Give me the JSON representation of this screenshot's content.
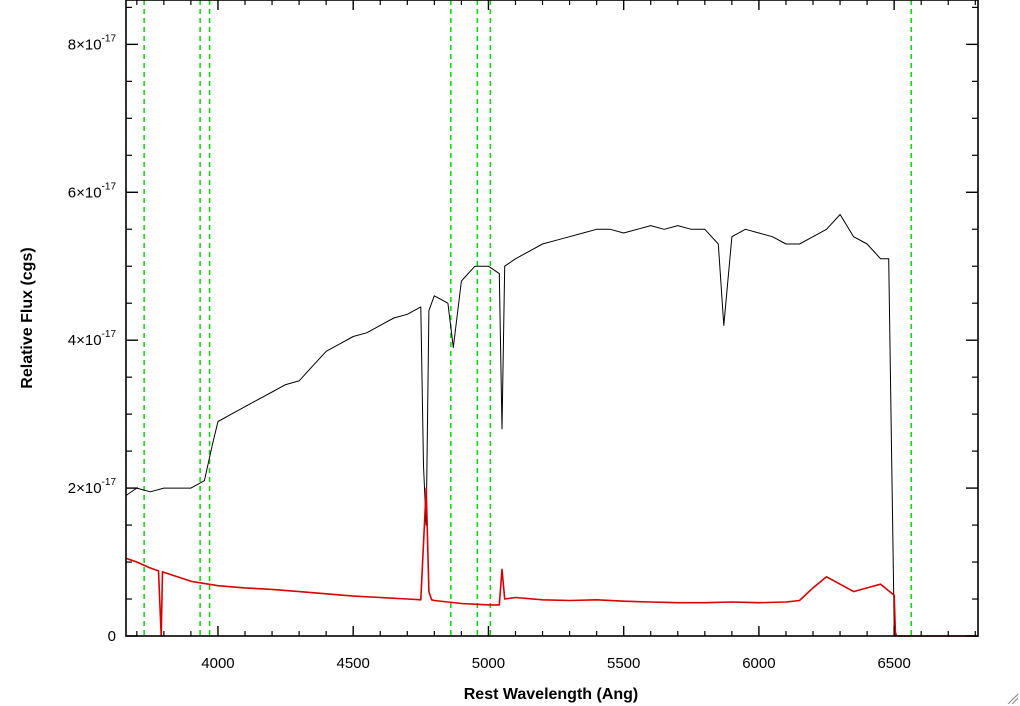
{
  "chart_data": {
    "type": "line",
    "title": "",
    "xlabel": "Rest Wavelength (Ang)",
    "ylabel": "Relative Flux (cgs)",
    "xlim": [
      3660,
      6810
    ],
    "ylim": [
      0,
      8.6e-17
    ],
    "x_ticks": [
      4000,
      4500,
      5000,
      5500,
      6000,
      6500
    ],
    "x_tick_labels": [
      "4000",
      "4500",
      "5000",
      "5500",
      "6000",
      "6500"
    ],
    "y_ticks": [
      0,
      2e-17,
      4e-17,
      6e-17,
      8e-17
    ],
    "y_tick_labels": [
      {
        "base": "0",
        "exp": ""
      },
      {
        "base": "2×10",
        "exp": "-17"
      },
      {
        "base": "4×10",
        "exp": "-17"
      },
      {
        "base": "6×10",
        "exp": "-17"
      },
      {
        "base": "8×10",
        "exp": "-17"
      }
    ],
    "grid": false,
    "legend": "none",
    "colors": {
      "observed": "#000000",
      "model": "#dd0000",
      "lines": "#00dd00"
    },
    "series": [
      {
        "x": [
          3660,
          3700,
          3750,
          3800,
          3850,
          3900,
          3950,
          3980,
          4000,
          4050,
          4100,
          4150,
          4200,
          4250,
          4300,
          4350,
          4400,
          4450,
          4500,
          4550,
          4600,
          4650,
          4700,
          4750,
          4760,
          4770,
          4780,
          4800,
          4850,
          4870,
          4900,
          4950,
          5000,
          5040,
          5050,
          5060,
          5100,
          5150,
          5200,
          5250,
          5300,
          5350,
          5400,
          5450,
          5500,
          5550,
          5600,
          5650,
          5700,
          5750,
          5800,
          5850,
          5870,
          5880,
          5900,
          5950,
          6000,
          6050,
          6100,
          6150,
          6200,
          6250,
          6300,
          6350,
          6400,
          6450,
          6480,
          6500,
          6510
        ],
        "values": [
          1.9e-17,
          2e-17,
          1.95e-17,
          2e-17,
          2e-17,
          2e-17,
          2.1e-17,
          2.6e-17,
          2.9e-17,
          3e-17,
          3.1e-17,
          3.2e-17,
          3.3e-17,
          3.4e-17,
          3.45e-17,
          3.65e-17,
          3.85e-17,
          3.95e-17,
          4.05e-17,
          4.1e-17,
          4.2e-17,
          4.3e-17,
          4.35e-17,
          4.45e-17,
          2.3e-17,
          1.5e-17,
          4.4e-17,
          4.6e-17,
          4.5e-17,
          3.9e-17,
          4.8e-17,
          5e-17,
          5e-17,
          4.9e-17,
          2.8e-17,
          5e-17,
          5.1e-17,
          5.2e-17,
          5.3e-17,
          5.35e-17,
          5.4e-17,
          5.45e-17,
          5.5e-17,
          5.5e-17,
          5.45e-17,
          5.5e-17,
          5.55e-17,
          5.5e-17,
          5.55e-17,
          5.5e-17,
          5.5e-17,
          5.3e-17,
          4.2e-17,
          4.6e-17,
          5.4e-17,
          5.5e-17,
          5.45e-17,
          5.4e-17,
          5.3e-17,
          5.3e-17,
          5.4e-17,
          5.5e-17,
          5.7e-17,
          5.4e-17,
          5.3e-17,
          5.1e-17,
          5.1e-17,
          1e-18,
          0
        ]
      },
      {
        "x": [
          3660,
          3700,
          3750,
          3780,
          3790,
          3795,
          3800,
          3850,
          3900,
          4000,
          4100,
          4200,
          4300,
          4400,
          4500,
          4600,
          4700,
          4750,
          4770,
          4780,
          4790,
          4800,
          4850,
          4900,
          4950,
          5000,
          5040,
          5050,
          5060,
          5100,
          5200,
          5300,
          5400,
          5500,
          5600,
          5700,
          5800,
          5900,
          6000,
          6100,
          6150,
          6200,
          6250,
          6300,
          6350,
          6400,
          6450,
          6500,
          6505,
          6510,
          6800,
          6810
        ],
        "values": [
          1.05e-17,
          1e-17,
          9.2e-18,
          8.8e-18,
          0,
          8.7e-18,
          8.6e-18,
          8e-18,
          7.4e-18,
          6.8e-18,
          6.5e-18,
          6.3e-18,
          6e-18,
          5.7e-18,
          5.4e-18,
          5.2e-18,
          5e-18,
          4.9e-18,
          2e-17,
          6e-18,
          4.9e-18,
          4.8e-18,
          4.6e-18,
          4.4e-18,
          4.3e-18,
          4.2e-18,
          4.2e-18,
          9e-18,
          5e-18,
          5.2e-18,
          4.9e-18,
          4.8e-18,
          4.9e-18,
          4.7e-18,
          4.6e-18,
          4.5e-18,
          4.5e-18,
          4.6e-18,
          4.5e-18,
          4.6e-18,
          4.8e-18,
          6.5e-18,
          8e-18,
          7e-18,
          6e-18,
          6.5e-18,
          7e-18,
          5.5e-18,
          0,
          0,
          0,
          0
        ]
      }
    ],
    "vlines": [
      3727,
      3934,
      3969,
      4861,
      4959,
      5007,
      6563
    ]
  }
}
